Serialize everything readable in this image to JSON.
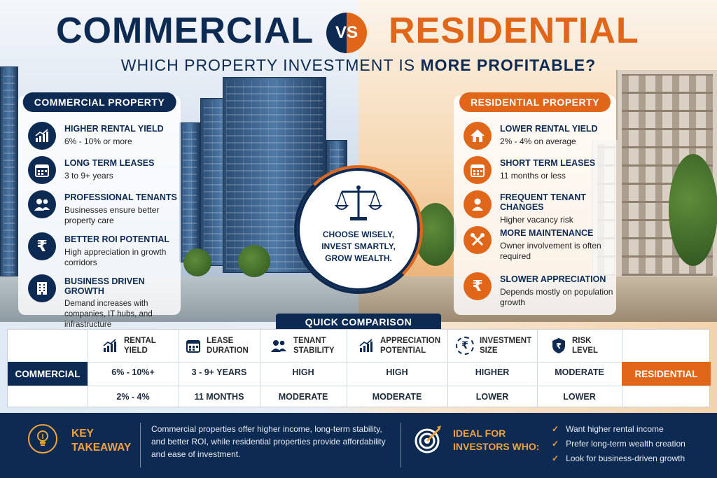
{
  "header": {
    "left_title": "COMMERCIAL",
    "vs": "VS",
    "right_title": "RESIDENTIAL",
    "subtitle_plain": "WHICH PROPERTY INVESTMENT IS ",
    "subtitle_bold": "MORE PROFITABLE",
    "subtitle_end": "?"
  },
  "commercial": {
    "heading": "COMMERCIAL PROPERTY",
    "features": [
      {
        "icon": "rising-chart-icon",
        "title": "HIGHER RENTAL YIELD",
        "desc": "6% - 10% or more"
      },
      {
        "icon": "calendar-icon",
        "title": "LONG TERM LEASES",
        "desc": "3 to 9+ years"
      },
      {
        "icon": "people-icon",
        "title": "PROFESSIONAL TENANTS",
        "desc": "Businesses ensure better property care"
      },
      {
        "icon": "rupee-icon",
        "title": "BETTER ROI POTENTIAL",
        "desc": "High appreciation in growth corridors"
      },
      {
        "icon": "building-icon",
        "title": "BUSINESS DRIVEN GROWTH",
        "desc": "Demand increases with companies, IT hubs, and infrastructure"
      }
    ]
  },
  "residential": {
    "heading": "RESIDENTIAL PROPERTY",
    "features": [
      {
        "icon": "home-icon",
        "title": "LOWER RENTAL YIELD",
        "desc": "2% - 4% on average"
      },
      {
        "icon": "calendar-icon",
        "title": "SHORT TERM LEASES",
        "desc": "11 months or less"
      },
      {
        "icon": "person-icon",
        "title": "FREQUENT TENANT CHANGES",
        "desc": "Higher vacancy risk"
      },
      {
        "icon": "tools-icon",
        "title": "MORE MAINTENANCE",
        "desc": "Owner involvement is often required"
      },
      {
        "icon": "rupee-icon",
        "title": "SLOWER APPRECIATION",
        "desc": "Depends mostly on population growth"
      }
    ]
  },
  "center": {
    "line1": "CHOOSE WISELY,",
    "line2": "INVEST SMARTLY,",
    "line3": "GROW WEALTH."
  },
  "comparison": {
    "heading": "QUICK COMPARISON",
    "columns": [
      {
        "icon": "rising-chart-icon",
        "l1": "RENTAL",
        "l2": "YIELD",
        "commercial": "6% - 10%+",
        "residential": "2% - 4%"
      },
      {
        "icon": "calendar-icon",
        "l1": "LEASE",
        "l2": "DURATION",
        "commercial": "3 - 9+ YEARS",
        "residential": "11 MONTHS"
      },
      {
        "icon": "people-icon",
        "l1": "TENANT",
        "l2": "STABILITY",
        "commercial": "HIGH",
        "residential": "MODERATE"
      },
      {
        "icon": "rising-chart-icon",
        "l1": "APPRECIATION",
        "l2": "POTENTIAL",
        "commercial": "HIGH",
        "residential": "MODERATE"
      },
      {
        "icon": "rupee-icon",
        "l1": "INVESTMENT",
        "l2": "SIZE",
        "commercial": "HIGHER",
        "residential": "LOWER"
      },
      {
        "icon": "shield-rupee-icon",
        "l1": "RISK",
        "l2": "LEVEL",
        "commercial": "MODERATE",
        "residential": "LOWER"
      }
    ],
    "row_commercial": "COMMERCIAL",
    "row_residential": "RESIDENTIAL"
  },
  "footer": {
    "takeaway_l1": "KEY",
    "takeaway_l2": "TAKEAWAY",
    "takeaway_text": "Commercial properties offer higher income, long-term stability, and better ROI, while residential properties provide affordability and ease of investment.",
    "ideal_l1": "IDEAL FOR",
    "ideal_l2": "INVESTORS WHO:",
    "ideal_items": [
      "Want higher rental income",
      "Prefer long-term wealth creation",
      "Look for business-driven growth"
    ]
  },
  "colors": {
    "navy": "#0d2a52",
    "orange": "#e0661a",
    "gold": "#f2a23a"
  }
}
